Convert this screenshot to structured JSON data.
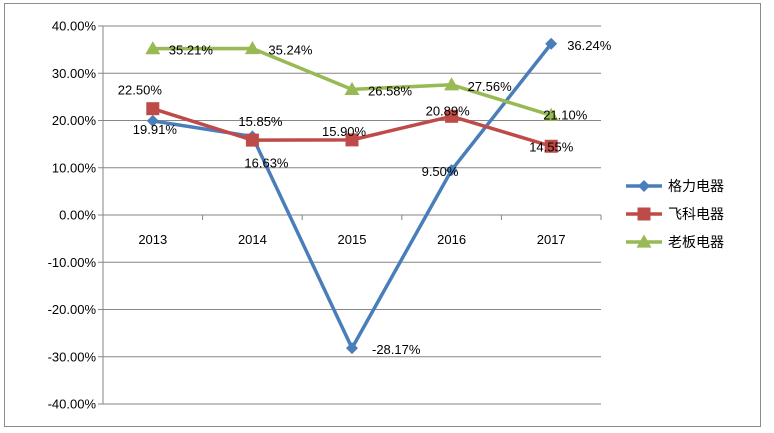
{
  "chart_data": {
    "type": "line",
    "categories": [
      "2013",
      "2014",
      "2015",
      "2016",
      "2017"
    ],
    "ylim": [
      -40,
      40
    ],
    "ytick_step": 10,
    "y_tick_labels": [
      "-40.00%",
      "-30.00%",
      "-20.00%",
      "-10.00%",
      "0.00%",
      "10.00%",
      "20.00%",
      "30.00%",
      "40.00%"
    ],
    "grid": "horizontal",
    "legend_position": "right",
    "series": [
      {
        "name": "格力电器",
        "color": "#4a7ebb",
        "marker": "diamond",
        "values": [
          19.91,
          16.63,
          -28.17,
          9.5,
          36.24
        ],
        "labels": [
          "19.91%",
          "16.63%",
          "-28.17%",
          "9.50%",
          "36.24%"
        ]
      },
      {
        "name": "飞科电器",
        "color": "#be4b48",
        "marker": "square",
        "values": [
          22.5,
          15.85,
          15.9,
          20.89,
          14.55
        ],
        "labels": [
          "22.50%",
          "15.85%",
          "15.90%",
          "20.89%",
          "14.55%"
        ]
      },
      {
        "name": "老板电器",
        "color": "#98b954",
        "marker": "triangle",
        "values": [
          35.21,
          35.24,
          26.58,
          27.56,
          21.1
        ],
        "labels": [
          "35.21%",
          "35.24%",
          "26.58%",
          "27.56%",
          "21.10%"
        ]
      }
    ]
  }
}
